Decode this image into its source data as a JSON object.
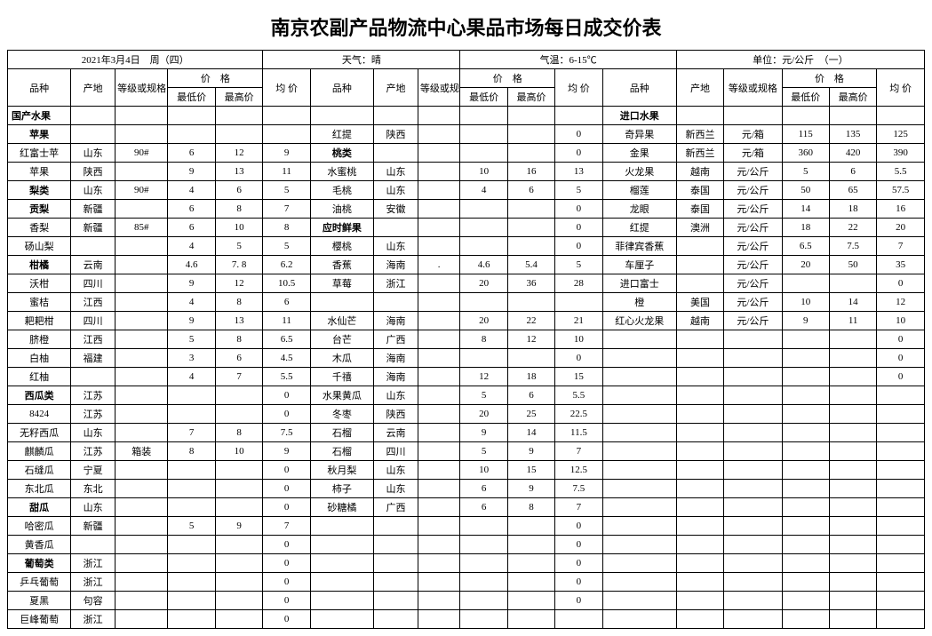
{
  "title": "南京农副产品物流中心果品市场每日成交价表",
  "meta": {
    "date": "2021年3月4日　周（四）",
    "weather": "天气：晴",
    "temp": "气温：6-15℃",
    "unit": "单位：元/公斤　（一）"
  },
  "headers": {
    "variety": "品种",
    "origin": "产地",
    "grade": "等级或规格",
    "price": "价　格",
    "low": "最低价",
    "high": "最高价",
    "avg": "均 价"
  },
  "col1": [
    {
      "v": "国产水果",
      "bold": true,
      "left": true
    },
    {
      "v": "苹果",
      "bold": true
    },
    {
      "v": "红富士苹",
      "o": "山东",
      "g": "90#",
      "l": "6",
      "h": "12",
      "a": "9"
    },
    {
      "v": "苹果",
      "o": "陕西",
      "l": "9",
      "h": "13",
      "a": "11"
    },
    {
      "v": "梨类",
      "bold": true,
      "o": "山东",
      "g": "90#",
      "l": "4",
      "h": "6",
      "a": "5"
    },
    {
      "v": "贡梨",
      "bold": true,
      "o": "新疆",
      "l": "6",
      "h": "8",
      "a": "7"
    },
    {
      "v": "香梨",
      "o": "新疆",
      "g": "85#",
      "l": "6",
      "h": "10",
      "a": "8"
    },
    {
      "v": "砀山梨",
      "l": "4",
      "h": "5",
      "a": "5"
    },
    {
      "v": "柑橘",
      "bold": true,
      "o": "云南",
      "l": "4.6",
      "h": "7. 8",
      "a": "6.2"
    },
    {
      "v": "沃柑",
      "o": "四川",
      "l": "9",
      "h": "12",
      "a": "10.5"
    },
    {
      "v": "蜜桔",
      "o": "江西",
      "l": "4",
      "h": "8",
      "a": "6"
    },
    {
      "v": "耙耙柑",
      "o": "四川",
      "l": "9",
      "h": "13",
      "a": "11"
    },
    {
      "v": "脐橙",
      "o": "江西",
      "l": "5",
      "h": "8",
      "a": "6.5"
    },
    {
      "v": "白柚",
      "o": "福建",
      "l": "3",
      "h": "6",
      "a": "4.5"
    },
    {
      "v": "红柚",
      "l": "4",
      "h": "7",
      "a": "5.5"
    },
    {
      "v": "西瓜类",
      "bold": true,
      "o": "江苏",
      "a": "0"
    },
    {
      "v": "8424",
      "o": "江苏",
      "a": "0"
    },
    {
      "v": "无籽西瓜",
      "o": "山东",
      "l": "7",
      "h": "8",
      "a": "7.5"
    },
    {
      "v": "麒麟瓜",
      "o": "江苏",
      "g": "箱装",
      "l": "8",
      "h": "10",
      "a": "9"
    },
    {
      "v": "石缝瓜",
      "o": "宁夏",
      "a": "0"
    },
    {
      "v": "东北瓜",
      "o": "东北",
      "a": "0"
    },
    {
      "v": "甜瓜",
      "bold": true,
      "o": "山东",
      "a": "0"
    },
    {
      "v": "哈密瓜",
      "o": "新疆",
      "l": "5",
      "h": "9",
      "a": "7"
    },
    {
      "v": "黄香瓜",
      "a": "0"
    },
    {
      "v": "葡萄类",
      "bold": true,
      "o": "浙江",
      "a": "0"
    },
    {
      "v": "乒乓葡萄",
      "o": "浙江",
      "a": "0"
    },
    {
      "v": "夏黑",
      "o": "句容",
      "a": "0"
    },
    {
      "v": "巨峰葡萄",
      "o": "浙江",
      "a": "0"
    }
  ],
  "col2": [
    {},
    {
      "v": "红提",
      "o": "陕西",
      "a": "0"
    },
    {
      "v": "桃类",
      "bold": true,
      "a": "0"
    },
    {
      "v": "水蜜桃",
      "o": "山东",
      "l": "10",
      "h": "16",
      "a": "13"
    },
    {
      "v": "毛桃",
      "o": "山东",
      "l": "4",
      "h": "6",
      "a": "5"
    },
    {
      "v": "油桃",
      "o": "安徽",
      "a": "0"
    },
    {
      "v": "应时鲜果",
      "bold": true,
      "a": "0"
    },
    {
      "v": "樱桃",
      "o": "山东",
      "a": "0"
    },
    {
      "v": "香蕉",
      "o": "海南",
      "g": ".",
      "l": "4.6",
      "h": "5.4",
      "a": "5"
    },
    {
      "v": "草莓",
      "o": "浙江",
      "l": "20",
      "h": "36",
      "a": "28"
    },
    {},
    {
      "v": "水仙芒",
      "o": "海南",
      "l": "20",
      "h": "22",
      "a": "21"
    },
    {
      "v": "台芒",
      "o": "广西",
      "l": "8",
      "h": "12",
      "a": "10"
    },
    {
      "v": "木瓜",
      "o": "海南",
      "a": "0"
    },
    {
      "v": "千禧",
      "o": "海南",
      "l": "12",
      "h": "18",
      "a": "15"
    },
    {
      "v": "水果黄瓜",
      "o": "山东",
      "l": "5",
      "h": "6",
      "a": "5.5"
    },
    {
      "v": "冬枣",
      "o": "陕西",
      "l": "20",
      "h": "25",
      "a": "22.5"
    },
    {
      "v": "石榴",
      "o": "云南",
      "l": "9",
      "h": "14",
      "a": "11.5"
    },
    {
      "v": "石榴",
      "o": "四川",
      "l": "5",
      "h": "9",
      "a": "7"
    },
    {
      "v": "秋月梨",
      "o": "山东",
      "l": "10",
      "h": "15",
      "a": "12.5"
    },
    {
      "v": "柿子",
      "o": "山东",
      "l": "6",
      "h": "9",
      "a": "7.5"
    },
    {
      "v": "砂糖橘",
      "o": "广西",
      "l": "6",
      "h": "8",
      "a": "7"
    },
    {
      "a": "0"
    },
    {
      "a": "0"
    },
    {
      "a": "0"
    },
    {
      "a": "0"
    },
    {
      "a": "0"
    },
    {}
  ],
  "col3": [
    {
      "v": "进口水果",
      "bold": true
    },
    {
      "v": "奇异果",
      "o": "新西兰",
      "g": "元/箱",
      "l": "115",
      "h": "135",
      "a": "125"
    },
    {
      "v": "金果",
      "o": "新西兰",
      "g": "元/箱",
      "l": "360",
      "h": "420",
      "a": "390"
    },
    {
      "v": "火龙果",
      "o": "越南",
      "g": "元/公斤",
      "l": "5",
      "h": "6",
      "a": "5.5"
    },
    {
      "v": "榴莲",
      "o": "泰国",
      "g": "元/公斤",
      "l": "50",
      "h": "65",
      "a": "57.5"
    },
    {
      "v": "龙眼",
      "o": "泰国",
      "g": "元/公斤",
      "l": "14",
      "h": "18",
      "a": "16"
    },
    {
      "v": "红提",
      "o": "澳洲",
      "g": "元/公斤",
      "l": "18",
      "h": "22",
      "a": "20"
    },
    {
      "v": "菲律宾香蕉",
      "g": "元/公斤",
      "l": "6.5",
      "h": "7.5",
      "a": "7"
    },
    {
      "v": "车厘子",
      "g": "元/公斤",
      "l": "20",
      "h": "50",
      "a": "35"
    },
    {
      "v": "进口富士",
      "g": "元/公斤",
      "a": "0"
    },
    {
      "v": "橙",
      "o": "美国",
      "g": "元/公斤",
      "l": "10",
      "h": "14",
      "a": "12"
    },
    {
      "v": "红心火龙果",
      "o": "越南",
      "g": "元/公斤",
      "l": "9",
      "h": "11",
      "a": "10"
    },
    {
      "a": "0"
    },
    {
      "a": "0"
    },
    {
      "a": "0"
    },
    {},
    {},
    {},
    {},
    {},
    {},
    {},
    {},
    {},
    {},
    {},
    {},
    {}
  ]
}
